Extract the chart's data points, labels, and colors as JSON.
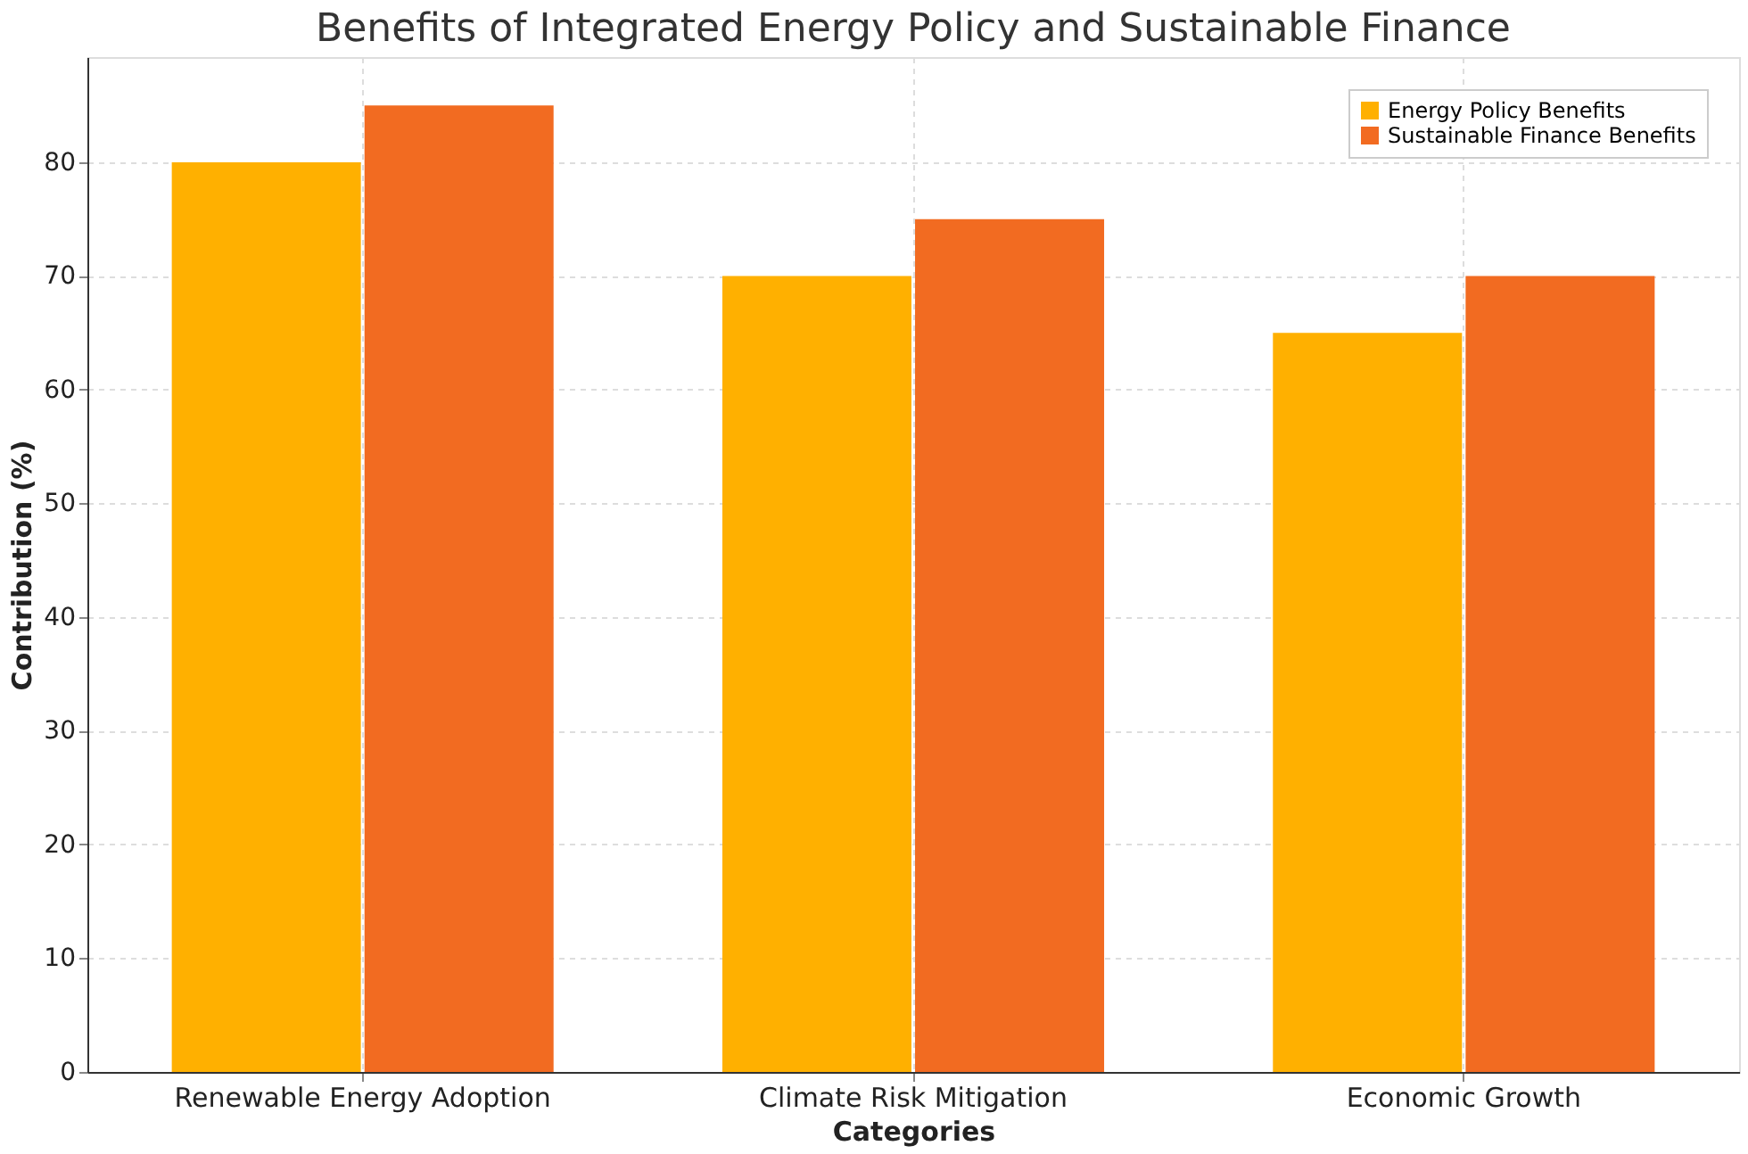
{
  "chart_data": {
    "type": "bar",
    "title": "Benefits of Integrated Energy Policy and Sustainable Finance",
    "xlabel": "Categories",
    "ylabel": "Contribution (%)",
    "categories": [
      "Renewable Energy Adoption",
      "Climate Risk Mitigation",
      "Economic Growth"
    ],
    "series": [
      {
        "name": "Energy Policy Benefits",
        "color": "#ffb000",
        "values": [
          80,
          70,
          65
        ]
      },
      {
        "name": "Sustainable Finance Benefits",
        "color": "#f26b21",
        "values": [
          85,
          75,
          70
        ]
      }
    ],
    "ylim": [
      0,
      89.25
    ],
    "yticks": [
      0,
      10,
      20,
      30,
      40,
      50,
      60,
      70,
      80
    ],
    "grid": true,
    "legend": "top right"
  }
}
